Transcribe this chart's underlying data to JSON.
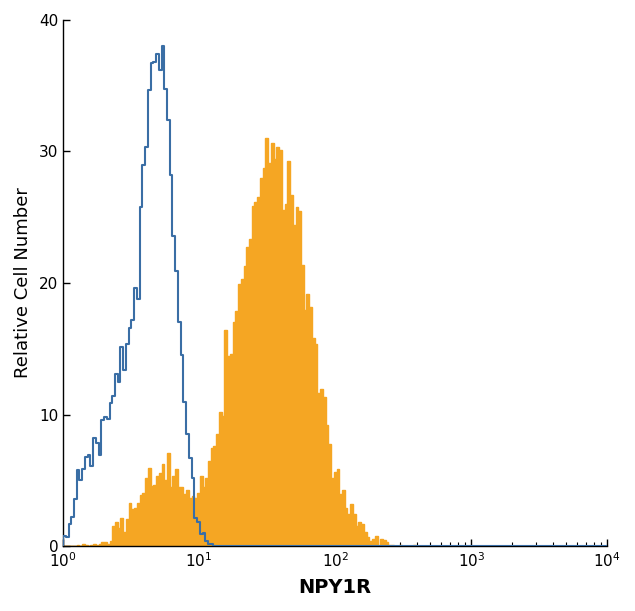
{
  "xlabel": "NPY1R",
  "ylabel": "Relative Cell Number",
  "xlim_log": [
    1,
    10000
  ],
  "ylim": [
    0,
    40
  ],
  "yticks": [
    0,
    10,
    20,
    30,
    40
  ],
  "xlabel_fontsize": 14,
  "ylabel_fontsize": 13,
  "tick_fontsize": 11,
  "blue_color": "#3a6ea5",
  "orange_color": "#f5a623",
  "background_color": "#ffffff",
  "blue_seed": 1234,
  "orange_seed": 5678,
  "n_bins": 200
}
